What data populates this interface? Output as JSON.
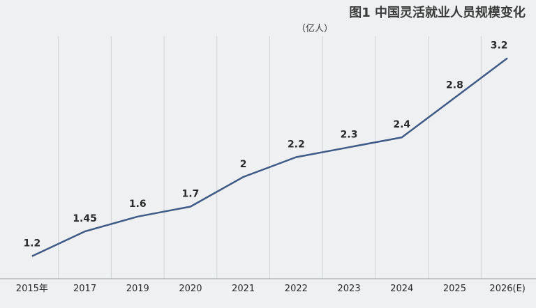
{
  "chart_data": {
    "type": "line",
    "title": "图1 中国灵活就业人员规模变化",
    "unit": "（亿人）",
    "categories": [
      "2015年",
      "2017",
      "2019",
      "2020",
      "2021",
      "2022",
      "2023",
      "2024",
      "2025",
      "2026(E)"
    ],
    "values": [
      1.2,
      1.45,
      1.6,
      1.7,
      2.0,
      2.2,
      2.3,
      2.4,
      2.8,
      3.2
    ],
    "value_labels": [
      "1.2",
      "1.45",
      "1.6",
      "1.7",
      "2",
      "2.2",
      "2.3",
      "2.4",
      "2.8",
      "3.2"
    ],
    "ylim": [
      1.0,
      3.4
    ],
    "grid": "vertical",
    "colors": {
      "line": "#3f5a86",
      "grid": "#cfd3d6",
      "background": "#eef0f1"
    }
  }
}
